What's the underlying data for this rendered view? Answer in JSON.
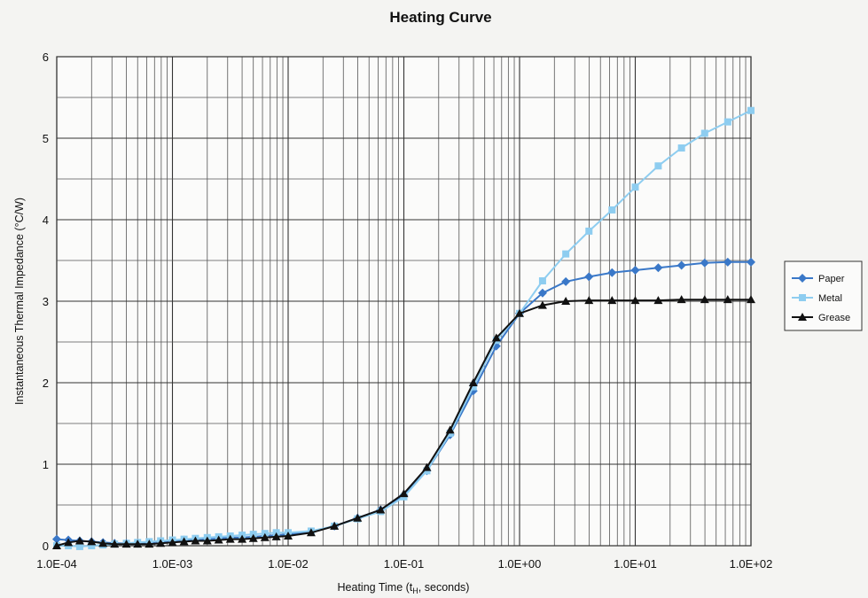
{
  "chart_data": {
    "type": "line",
    "title": "Heating Curve",
    "xlabel": "Heating Time (t_H, seconds)",
    "xlabel_main": "Heating Time (t",
    "xlabel_sub": "H",
    "xlabel_end": ", seconds)",
    "ylabel": "Instantaneous Thermal Impedance (°C/W)",
    "x_scale": "log",
    "xlim": [
      0.0001,
      100
    ],
    "ylim": [
      0,
      6
    ],
    "x_ticks": [
      0.0001,
      0.001,
      0.01,
      0.1,
      1,
      10,
      100
    ],
    "x_tick_labels": [
      "1.0E-04",
      "1.0E-03",
      "1.0E-02",
      "1.0E-01",
      "1.0E+00",
      "1.0E+01",
      "1.0E+02"
    ],
    "y_ticks": [
      0,
      1,
      2,
      3,
      4,
      5,
      6
    ],
    "y_tick_labels": [
      "0",
      "1",
      "2",
      "3",
      "4",
      "5",
      "6"
    ],
    "grid": true,
    "legend_position": "right",
    "series": [
      {
        "name": "Paper",
        "color": "#3a78c8",
        "marker": "diamond",
        "points": [
          [
            0.0001,
            0.08
          ],
          [
            0.000126,
            0.07
          ],
          [
            0.000158,
            0.06
          ],
          [
            0.0002,
            0.05
          ],
          [
            0.000251,
            0.04
          ],
          [
            0.000316,
            0.03
          ],
          [
            0.0004,
            0.03
          ],
          [
            0.0005,
            0.03
          ],
          [
            0.00063,
            0.04
          ],
          [
            0.00079,
            0.05
          ],
          [
            0.001,
            0.06
          ],
          [
            0.00126,
            0.07
          ],
          [
            0.00158,
            0.07
          ],
          [
            0.002,
            0.08
          ],
          [
            0.00251,
            0.09
          ],
          [
            0.00316,
            0.1
          ],
          [
            0.004,
            0.1
          ],
          [
            0.005,
            0.11
          ],
          [
            0.0063,
            0.12
          ],
          [
            0.0079,
            0.13
          ],
          [
            0.01,
            0.14
          ],
          [
            0.0158,
            0.17
          ],
          [
            0.0251,
            0.24
          ],
          [
            0.0398,
            0.34
          ],
          [
            0.063,
            0.44
          ],
          [
            0.1,
            0.62
          ],
          [
            0.158,
            0.92
          ],
          [
            0.251,
            1.36
          ],
          [
            0.398,
            1.9
          ],
          [
            0.63,
            2.45
          ],
          [
            1.0,
            2.85
          ],
          [
            1.58,
            3.1
          ],
          [
            2.51,
            3.24
          ],
          [
            3.98,
            3.3
          ],
          [
            6.3,
            3.35
          ],
          [
            10,
            3.38
          ],
          [
            15.8,
            3.41
          ],
          [
            25.1,
            3.44
          ],
          [
            39.8,
            3.47
          ],
          [
            63,
            3.48
          ],
          [
            100,
            3.48
          ]
        ]
      },
      {
        "name": "Metal",
        "color": "#8ecdf0",
        "marker": "square",
        "points": [
          [
            0.0001,
            0.0
          ],
          [
            0.000126,
            0.0
          ],
          [
            0.000158,
            -0.01
          ],
          [
            0.0002,
            0.0
          ],
          [
            0.000251,
            0.01
          ],
          [
            0.000316,
            0.02
          ],
          [
            0.0004,
            0.03
          ],
          [
            0.0005,
            0.04
          ],
          [
            0.00063,
            0.05
          ],
          [
            0.00079,
            0.06
          ],
          [
            0.001,
            0.07
          ],
          [
            0.00126,
            0.08
          ],
          [
            0.00158,
            0.09
          ],
          [
            0.002,
            0.1
          ],
          [
            0.00251,
            0.11
          ],
          [
            0.00316,
            0.12
          ],
          [
            0.004,
            0.13
          ],
          [
            0.005,
            0.14
          ],
          [
            0.0063,
            0.15
          ],
          [
            0.0079,
            0.16
          ],
          [
            0.01,
            0.16
          ],
          [
            0.0158,
            0.18
          ],
          [
            0.0251,
            0.24
          ],
          [
            0.0398,
            0.33
          ],
          [
            0.063,
            0.42
          ],
          [
            0.1,
            0.6
          ],
          [
            0.158,
            0.92
          ],
          [
            0.251,
            1.38
          ],
          [
            0.398,
            1.95
          ],
          [
            0.63,
            2.52
          ],
          [
            1.0,
            2.85
          ],
          [
            1.58,
            3.25
          ],
          [
            2.51,
            3.58
          ],
          [
            3.98,
            3.86
          ],
          [
            6.3,
            4.12
          ],
          [
            10,
            4.4
          ],
          [
            15.8,
            4.66
          ],
          [
            25.1,
            4.88
          ],
          [
            39.8,
            5.06
          ],
          [
            63,
            5.2
          ],
          [
            100,
            5.34
          ]
        ]
      },
      {
        "name": "Grease",
        "color": "#111111",
        "marker": "triangle",
        "points": [
          [
            0.0001,
            0.0
          ],
          [
            0.000126,
            0.04
          ],
          [
            0.000158,
            0.06
          ],
          [
            0.0002,
            0.05
          ],
          [
            0.000251,
            0.03
          ],
          [
            0.000316,
            0.02
          ],
          [
            0.0004,
            0.02
          ],
          [
            0.0005,
            0.02
          ],
          [
            0.00063,
            0.02
          ],
          [
            0.00079,
            0.03
          ],
          [
            0.001,
            0.04
          ],
          [
            0.00126,
            0.05
          ],
          [
            0.00158,
            0.06
          ],
          [
            0.002,
            0.06
          ],
          [
            0.00251,
            0.07
          ],
          [
            0.00316,
            0.08
          ],
          [
            0.004,
            0.08
          ],
          [
            0.005,
            0.09
          ],
          [
            0.0063,
            0.1
          ],
          [
            0.0079,
            0.11
          ],
          [
            0.01,
            0.12
          ],
          [
            0.0158,
            0.16
          ],
          [
            0.0251,
            0.24
          ],
          [
            0.0398,
            0.34
          ],
          [
            0.063,
            0.44
          ],
          [
            0.1,
            0.64
          ],
          [
            0.158,
            0.96
          ],
          [
            0.251,
            1.42
          ],
          [
            0.398,
            2.0
          ],
          [
            0.63,
            2.55
          ],
          [
            1.0,
            2.85
          ],
          [
            1.58,
            2.95
          ],
          [
            2.51,
            3.0
          ],
          [
            3.98,
            3.01
          ],
          [
            6.3,
            3.01
          ],
          [
            10,
            3.01
          ],
          [
            15.8,
            3.01
          ],
          [
            25.1,
            3.02
          ],
          [
            39.8,
            3.02
          ],
          [
            63,
            3.02
          ],
          [
            100,
            3.02
          ]
        ]
      }
    ]
  }
}
